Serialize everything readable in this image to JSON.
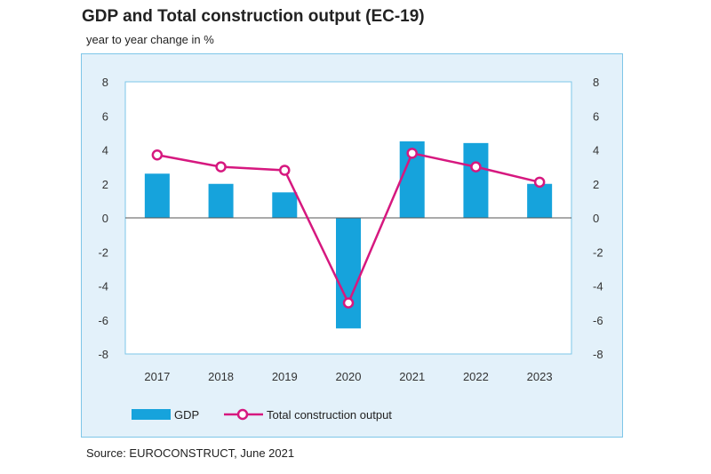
{
  "title": "GDP and Total construction output (EC-19)",
  "subtitle": "year to year change in %",
  "source": "Source: EUROCONSTRUCT, June 2021",
  "colors": {
    "gdp": "#16a3dc",
    "construction": "#d6187f",
    "plot_bg": "#ffffff",
    "frame_bg": "#e3f1fa",
    "frame_border": "#7ec6e8"
  },
  "chart_data": {
    "type": "bar",
    "categories": [
      "2017",
      "2018",
      "2019",
      "2020",
      "2021",
      "2022",
      "2023"
    ],
    "series": [
      {
        "name": "GDP",
        "type": "bar",
        "values": [
          2.6,
          2.0,
          1.5,
          -6.5,
          4.5,
          4.4,
          2.0
        ]
      },
      {
        "name": "Total construction output",
        "type": "line",
        "values": [
          3.7,
          3.0,
          2.8,
          -5.0,
          3.8,
          3.0,
          2.1
        ]
      }
    ],
    "ylim": [
      -8,
      8
    ],
    "yticks": [
      "8",
      "6",
      "4",
      "2",
      "0",
      "-2",
      "-4",
      "-6",
      "-8"
    ],
    "ytick_values": [
      8,
      6,
      4,
      2,
      0,
      -2,
      -4,
      -6,
      -8
    ],
    "y_axes": "left and right",
    "legend_position": "bottom"
  }
}
